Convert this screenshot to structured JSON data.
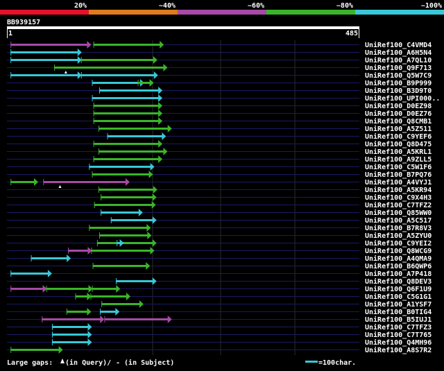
{
  "colors": {
    "background": "#000000",
    "red": "#e8102a",
    "orange": "#e07a1e",
    "purple": "#a64aa6",
    "green": "#3ab52a",
    "cyan": "#38c8d8",
    "query_bar": "#ffffff",
    "row_line": "#1a1a66",
    "grid": "#2a2a2a",
    "text": "#ffffff"
  },
  "legend": {
    "labels": [
      "20%",
      "~40%",
      "~60%",
      "~80%",
      "~100%"
    ],
    "colors": [
      "#e8102a",
      "#e07a1e",
      "#a64aa6",
      "#3ab52a",
      "#38c8d8"
    ]
  },
  "query": {
    "id": "BB939157",
    "start_label": "1",
    "end_label": "485",
    "length": 485
  },
  "footer": {
    "gaps_text": "Large gaps:",
    "in_query": "(in Query)/",
    "in_subject": "- (in Subject)",
    "scale_label": "=100char."
  },
  "hits": [
    {
      "id": "UniRef100_C4VMD4",
      "segments": [
        [
          5,
          115,
          "purple"
        ],
        [
          119,
          215,
          "green"
        ]
      ]
    },
    {
      "id": "UniRef100_A6H5N4",
      "segments": [
        [
          5,
          102,
          "cyan"
        ]
      ]
    },
    {
      "id": "UniRef100_A7QL10",
      "segments": [
        [
          5,
          102,
          "cyan"
        ],
        [
          102,
          206,
          "green"
        ]
      ]
    },
    {
      "id": "UniRef100_Q9F713",
      "segments": [
        [
          65,
          220,
          "green"
        ]
      ],
      "gaps": [
        81
      ]
    },
    {
      "id": "UniRef100_Q5W7C9",
      "segments": [
        [
          5,
          102,
          "cyan"
        ],
        [
          102,
          207,
          "cyan"
        ]
      ]
    },
    {
      "id": "UniRef100_B9P999",
      "segments": [
        [
          117,
          188,
          "cyan"
        ],
        [
          180,
          201,
          "green"
        ]
      ]
    },
    {
      "id": "UniRef100_B3D9T0",
      "segments": [
        [
          127,
          213,
          "cyan"
        ]
      ]
    },
    {
      "id": "UniRef100_UPI000..",
      "segments": [
        [
          117,
          213,
          "cyan"
        ]
      ]
    },
    {
      "id": "UniRef100_D0EZ98",
      "segments": [
        [
          119,
          213,
          "green"
        ]
      ]
    },
    {
      "id": "UniRef100_D0EZ76",
      "segments": [
        [
          119,
          213,
          "green"
        ]
      ]
    },
    {
      "id": "UniRef100_Q8CMB1",
      "segments": [
        [
          119,
          213,
          "green"
        ]
      ]
    },
    {
      "id": "UniRef100_A5Z511",
      "segments": [
        [
          126,
          226,
          "green"
        ]
      ]
    },
    {
      "id": "UniRef100_C9YEF6",
      "segments": [
        [
          138,
          218,
          "cyan"
        ]
      ]
    },
    {
      "id": "UniRef100_Q8D475",
      "segments": [
        [
          119,
          213,
          "green"
        ]
      ]
    },
    {
      "id": "UniRef100_A5KRL1",
      "segments": [
        [
          126,
          220,
          "green"
        ]
      ]
    },
    {
      "id": "UniRef100_A9ZLL5",
      "segments": [
        [
          119,
          213,
          "green"
        ]
      ]
    },
    {
      "id": "UniRef100_C5W1F6",
      "segments": [
        [
          113,
          202,
          "cyan"
        ]
      ]
    },
    {
      "id": "UniRef100_B7PQ76",
      "segments": [
        [
          117,
          200,
          "green"
        ]
      ]
    },
    {
      "id": "UniRef100_A4VYJ1",
      "segments": [
        [
          5,
          42,
          "green"
        ],
        [
          50,
          168,
          "purple"
        ]
      ],
      "gaps": [
        73
      ]
    },
    {
      "id": "UniRef100_A5KR94",
      "segments": [
        [
          126,
          206,
          "green"
        ]
      ]
    },
    {
      "id": "UniRef100_C9X4H3",
      "segments": [
        [
          129,
          205,
          "green"
        ]
      ]
    },
    {
      "id": "UniRef100_C7TFZ2",
      "segments": [
        [
          120,
          204,
          "green"
        ]
      ]
    },
    {
      "id": "UniRef100_Q85WW0",
      "segments": [
        [
          129,
          186,
          "cyan"
        ]
      ]
    },
    {
      "id": "UniRef100_A5C517",
      "segments": [
        [
          143,
          205,
          "cyan"
        ]
      ]
    },
    {
      "id": "UniRef100_B7R8V3",
      "segments": [
        [
          113,
          197,
          "green"
        ]
      ]
    },
    {
      "id": "UniRef100_A5ZYU0",
      "segments": [
        [
          127,
          198,
          "green"
        ]
      ]
    },
    {
      "id": "UniRef100_C9YEI2",
      "segments": [
        [
          124,
          205,
          "green"
        ],
        [
          151,
          160,
          "cyan"
        ]
      ]
    },
    {
      "id": "UniRef100_Q8WCG9",
      "segments": [
        [
          84,
          116,
          "purple"
        ],
        [
          116,
          202,
          "green"
        ]
      ]
    },
    {
      "id": "UniRef100_A4QMA9",
      "segments": [
        [
          33,
          87,
          "cyan"
        ]
      ]
    },
    {
      "id": "UniRef100_B6QWP6",
      "segments": [
        [
          118,
          196,
          "green"
        ]
      ]
    },
    {
      "id": "UniRef100_A7P418",
      "segments": [
        [
          5,
          61,
          "cyan"
        ]
      ]
    },
    {
      "id": "UniRef100_Q8DEV3",
      "segments": [
        [
          150,
          205,
          "cyan"
        ]
      ]
    },
    {
      "id": "UniRef100_Q6F1U9",
      "segments": [
        [
          5,
          54,
          "purple"
        ],
        [
          54,
          117,
          "green"
        ],
        [
          117,
          155,
          "green"
        ]
      ]
    },
    {
      "id": "UniRef100_C5G1G1",
      "segments": [
        [
          94,
          115,
          "green"
        ],
        [
          115,
          169,
          "green"
        ]
      ]
    },
    {
      "id": "UniRef100_A1YSF7",
      "segments": [
        [
          130,
          187,
          "green"
        ]
      ]
    },
    {
      "id": "UniRef100_B0TIG4",
      "segments": [
        [
          82,
          115,
          "green"
        ],
        [
          128,
          154,
          "cyan"
        ]
      ]
    },
    {
      "id": "UniRef100_B5IUJ1",
      "segments": [
        [
          48,
          133,
          "purple"
        ],
        [
          134,
          226,
          "purple"
        ]
      ]
    },
    {
      "id": "UniRef100_C7TFZ3",
      "segments": [
        [
          62,
          116,
          "cyan"
        ]
      ]
    },
    {
      "id": "UniRef100_C7T765",
      "segments": [
        [
          62,
          116,
          "cyan"
        ]
      ]
    },
    {
      "id": "UniRef100_Q4MH96",
      "segments": [
        [
          62,
          116,
          "cyan"
        ]
      ]
    },
    {
      "id": "UniRef100_A8S7R2",
      "segments": [
        [
          5,
          76,
          "green"
        ]
      ]
    }
  ]
}
